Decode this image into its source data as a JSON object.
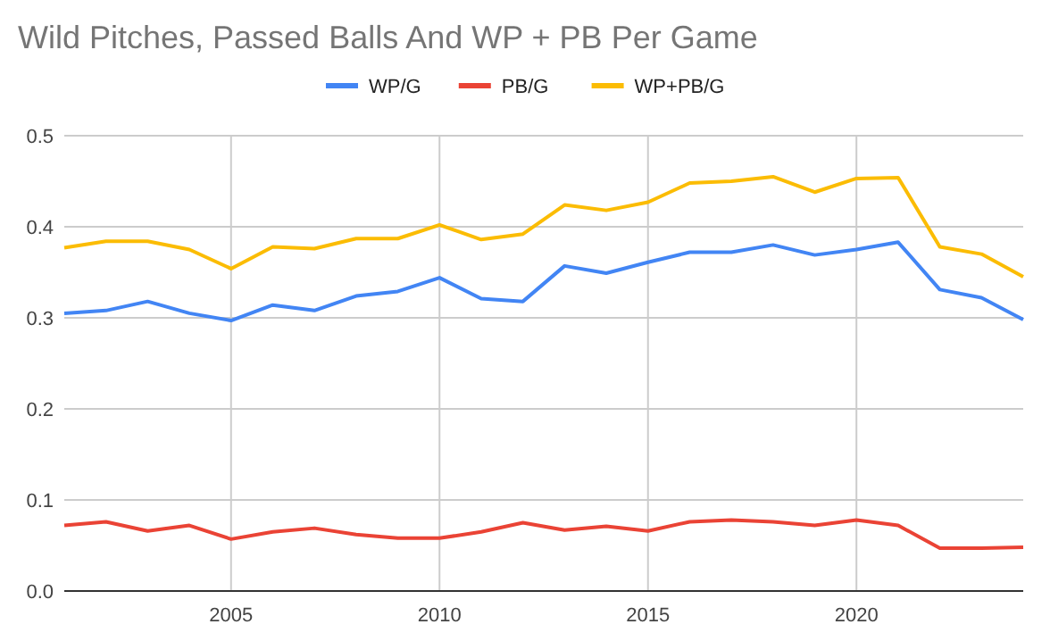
{
  "chart_data": {
    "type": "line",
    "title": "Wild Pitches, Passed Balls And WP + PB Per Game",
    "x": [
      2001,
      2002,
      2003,
      2004,
      2005,
      2006,
      2007,
      2008,
      2009,
      2010,
      2011,
      2012,
      2013,
      2014,
      2015,
      2016,
      2017,
      2018,
      2019,
      2020,
      2021,
      2022,
      2023,
      2024
    ],
    "series": [
      {
        "name": "WP/G",
        "color": "#4285f4",
        "values": [
          0.305,
          0.308,
          0.318,
          0.305,
          0.297,
          0.314,
          0.308,
          0.324,
          0.329,
          0.344,
          0.321,
          0.318,
          0.357,
          0.349,
          0.361,
          0.372,
          0.372,
          0.38,
          0.369,
          0.375,
          0.383,
          0.331,
          0.322,
          0.298
        ]
      },
      {
        "name": "PB/G",
        "color": "#ea4335",
        "values": [
          0.072,
          0.076,
          0.066,
          0.072,
          0.057,
          0.065,
          0.069,
          0.062,
          0.058,
          0.058,
          0.065,
          0.075,
          0.067,
          0.071,
          0.066,
          0.076,
          0.078,
          0.076,
          0.072,
          0.078,
          0.072,
          0.047,
          0.047,
          0.048
        ]
      },
      {
        "name": "WP+PB/G",
        "color": "#fbbc04",
        "values": [
          0.377,
          0.384,
          0.384,
          0.375,
          0.354,
          0.378,
          0.376,
          0.387,
          0.387,
          0.402,
          0.386,
          0.392,
          0.424,
          0.418,
          0.427,
          0.448,
          0.45,
          0.455,
          0.438,
          0.453,
          0.454,
          0.378,
          0.37,
          0.345
        ]
      }
    ],
    "xlim": [
      2001,
      2024
    ],
    "xticks": [
      2005,
      2010,
      2015,
      2020
    ],
    "ylim": [
      0,
      0.5
    ],
    "yticks": [
      {
        "value": 0,
        "label": "0.0"
      },
      {
        "value": 0.1,
        "label": "0.1"
      },
      {
        "value": 0.2,
        "label": "0.2"
      },
      {
        "value": 0.3,
        "label": "0.3"
      },
      {
        "value": 0.4,
        "label": "0.4"
      },
      {
        "value": 0.5,
        "label": "0.5"
      }
    ],
    "grid": true,
    "legend": "top",
    "marker": "none",
    "line_style": "solid"
  }
}
